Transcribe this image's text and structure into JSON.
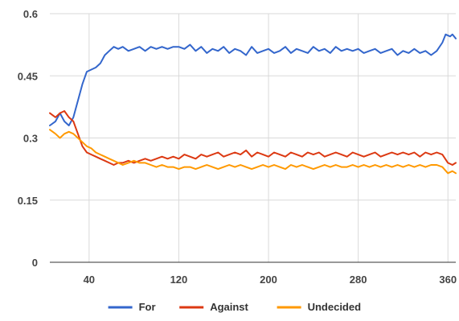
{
  "chart_data": {
    "type": "line",
    "title": "",
    "xlabel": "",
    "ylabel": "",
    "xlim": [
      5,
      367
    ],
    "ylim": [
      0,
      0.6
    ],
    "x_ticks": [
      40,
      120,
      200,
      280,
      360
    ],
    "y_ticks": [
      0,
      0.15,
      0.3,
      0.45,
      0.6
    ],
    "x_tick_labels": [
      "40",
      "120",
      "200",
      "280",
      "360"
    ],
    "y_tick_labels": [
      "0",
      "0.15",
      "0.3",
      "0.45",
      "0.6"
    ],
    "grid": true,
    "legend_position": "bottom",
    "series": [
      {
        "name": "For",
        "color": "#3366cc",
        "points": [
          [
            5,
            0.33
          ],
          [
            10,
            0.34
          ],
          [
            14,
            0.36
          ],
          [
            18,
            0.34
          ],
          [
            22,
            0.33
          ],
          [
            26,
            0.35
          ],
          [
            30,
            0.39
          ],
          [
            34,
            0.43
          ],
          [
            38,
            0.46
          ],
          [
            42,
            0.465
          ],
          [
            46,
            0.47
          ],
          [
            50,
            0.48
          ],
          [
            54,
            0.5
          ],
          [
            58,
            0.51
          ],
          [
            62,
            0.52
          ],
          [
            66,
            0.515
          ],
          [
            70,
            0.52
          ],
          [
            75,
            0.51
          ],
          [
            80,
            0.515
          ],
          [
            85,
            0.52
          ],
          [
            90,
            0.51
          ],
          [
            95,
            0.52
          ],
          [
            100,
            0.515
          ],
          [
            105,
            0.52
          ],
          [
            110,
            0.515
          ],
          [
            115,
            0.52
          ],
          [
            120,
            0.52
          ],
          [
            125,
            0.515
          ],
          [
            130,
            0.525
          ],
          [
            135,
            0.51
          ],
          [
            140,
            0.52
          ],
          [
            145,
            0.505
          ],
          [
            150,
            0.515
          ],
          [
            155,
            0.51
          ],
          [
            160,
            0.52
          ],
          [
            165,
            0.505
          ],
          [
            170,
            0.515
          ],
          [
            175,
            0.51
          ],
          [
            180,
            0.5
          ],
          [
            185,
            0.52
          ],
          [
            190,
            0.505
          ],
          [
            195,
            0.51
          ],
          [
            200,
            0.515
          ],
          [
            205,
            0.505
          ],
          [
            210,
            0.51
          ],
          [
            215,
            0.52
          ],
          [
            220,
            0.505
          ],
          [
            225,
            0.515
          ],
          [
            230,
            0.51
          ],
          [
            235,
            0.505
          ],
          [
            240,
            0.52
          ],
          [
            245,
            0.51
          ],
          [
            250,
            0.515
          ],
          [
            255,
            0.505
          ],
          [
            260,
            0.52
          ],
          [
            265,
            0.51
          ],
          [
            270,
            0.515
          ],
          [
            275,
            0.51
          ],
          [
            280,
            0.515
          ],
          [
            285,
            0.505
          ],
          [
            290,
            0.51
          ],
          [
            295,
            0.515
          ],
          [
            300,
            0.505
          ],
          [
            305,
            0.51
          ],
          [
            310,
            0.515
          ],
          [
            315,
            0.5
          ],
          [
            320,
            0.51
          ],
          [
            325,
            0.505
          ],
          [
            330,
            0.515
          ],
          [
            335,
            0.505
          ],
          [
            340,
            0.51
          ],
          [
            345,
            0.5
          ],
          [
            350,
            0.51
          ],
          [
            355,
            0.53
          ],
          [
            358,
            0.55
          ],
          [
            362,
            0.545
          ],
          [
            364,
            0.55
          ],
          [
            367,
            0.54
          ]
        ]
      },
      {
        "name": "Against",
        "color": "#dc3912",
        "points": [
          [
            5,
            0.36
          ],
          [
            10,
            0.35
          ],
          [
            14,
            0.36
          ],
          [
            18,
            0.365
          ],
          [
            22,
            0.35
          ],
          [
            26,
            0.34
          ],
          [
            30,
            0.31
          ],
          [
            34,
            0.28
          ],
          [
            38,
            0.265
          ],
          [
            42,
            0.26
          ],
          [
            46,
            0.255
          ],
          [
            50,
            0.25
          ],
          [
            54,
            0.245
          ],
          [
            58,
            0.24
          ],
          [
            62,
            0.235
          ],
          [
            66,
            0.24
          ],
          [
            70,
            0.24
          ],
          [
            75,
            0.245
          ],
          [
            80,
            0.24
          ],
          [
            85,
            0.245
          ],
          [
            90,
            0.25
          ],
          [
            95,
            0.245
          ],
          [
            100,
            0.25
          ],
          [
            105,
            0.255
          ],
          [
            110,
            0.25
          ],
          [
            115,
            0.255
          ],
          [
            120,
            0.25
          ],
          [
            125,
            0.26
          ],
          [
            130,
            0.255
          ],
          [
            135,
            0.25
          ],
          [
            140,
            0.26
          ],
          [
            145,
            0.255
          ],
          [
            150,
            0.26
          ],
          [
            155,
            0.265
          ],
          [
            160,
            0.255
          ],
          [
            165,
            0.26
          ],
          [
            170,
            0.265
          ],
          [
            175,
            0.26
          ],
          [
            180,
            0.27
          ],
          [
            185,
            0.255
          ],
          [
            190,
            0.265
          ],
          [
            195,
            0.26
          ],
          [
            200,
            0.255
          ],
          [
            205,
            0.265
          ],
          [
            210,
            0.26
          ],
          [
            215,
            0.255
          ],
          [
            220,
            0.265
          ],
          [
            225,
            0.26
          ],
          [
            230,
            0.255
          ],
          [
            235,
            0.265
          ],
          [
            240,
            0.26
          ],
          [
            245,
            0.265
          ],
          [
            250,
            0.255
          ],
          [
            255,
            0.26
          ],
          [
            260,
            0.265
          ],
          [
            265,
            0.26
          ],
          [
            270,
            0.255
          ],
          [
            275,
            0.265
          ],
          [
            280,
            0.26
          ],
          [
            285,
            0.255
          ],
          [
            290,
            0.26
          ],
          [
            295,
            0.265
          ],
          [
            300,
            0.255
          ],
          [
            305,
            0.26
          ],
          [
            310,
            0.265
          ],
          [
            315,
            0.26
          ],
          [
            320,
            0.265
          ],
          [
            325,
            0.26
          ],
          [
            330,
            0.265
          ],
          [
            335,
            0.255
          ],
          [
            340,
            0.265
          ],
          [
            345,
            0.26
          ],
          [
            350,
            0.265
          ],
          [
            355,
            0.26
          ],
          [
            360,
            0.24
          ],
          [
            364,
            0.235
          ],
          [
            367,
            0.24
          ]
        ]
      },
      {
        "name": "Undecided",
        "color": "#ff9900",
        "points": [
          [
            5,
            0.32
          ],
          [
            10,
            0.31
          ],
          [
            14,
            0.3
          ],
          [
            18,
            0.31
          ],
          [
            22,
            0.315
          ],
          [
            26,
            0.31
          ],
          [
            30,
            0.3
          ],
          [
            34,
            0.29
          ],
          [
            38,
            0.28
          ],
          [
            42,
            0.275
          ],
          [
            46,
            0.265
          ],
          [
            50,
            0.26
          ],
          [
            54,
            0.255
          ],
          [
            58,
            0.25
          ],
          [
            62,
            0.245
          ],
          [
            66,
            0.24
          ],
          [
            70,
            0.235
          ],
          [
            75,
            0.24
          ],
          [
            80,
            0.245
          ],
          [
            85,
            0.24
          ],
          [
            90,
            0.24
          ],
          [
            95,
            0.235
          ],
          [
            100,
            0.23
          ],
          [
            105,
            0.235
          ],
          [
            110,
            0.23
          ],
          [
            115,
            0.23
          ],
          [
            120,
            0.225
          ],
          [
            125,
            0.23
          ],
          [
            130,
            0.23
          ],
          [
            135,
            0.225
          ],
          [
            140,
            0.23
          ],
          [
            145,
            0.235
          ],
          [
            150,
            0.23
          ],
          [
            155,
            0.225
          ],
          [
            160,
            0.23
          ],
          [
            165,
            0.235
          ],
          [
            170,
            0.23
          ],
          [
            175,
            0.235
          ],
          [
            180,
            0.23
          ],
          [
            185,
            0.225
          ],
          [
            190,
            0.23
          ],
          [
            195,
            0.235
          ],
          [
            200,
            0.23
          ],
          [
            205,
            0.235
          ],
          [
            210,
            0.23
          ],
          [
            215,
            0.225
          ],
          [
            220,
            0.235
          ],
          [
            225,
            0.23
          ],
          [
            230,
            0.235
          ],
          [
            235,
            0.23
          ],
          [
            240,
            0.225
          ],
          [
            245,
            0.23
          ],
          [
            250,
            0.235
          ],
          [
            255,
            0.23
          ],
          [
            260,
            0.235
          ],
          [
            265,
            0.23
          ],
          [
            270,
            0.23
          ],
          [
            275,
            0.235
          ],
          [
            280,
            0.23
          ],
          [
            285,
            0.235
          ],
          [
            290,
            0.23
          ],
          [
            295,
            0.235
          ],
          [
            300,
            0.23
          ],
          [
            305,
            0.235
          ],
          [
            310,
            0.23
          ],
          [
            315,
            0.235
          ],
          [
            320,
            0.23
          ],
          [
            325,
            0.235
          ],
          [
            330,
            0.23
          ],
          [
            335,
            0.235
          ],
          [
            340,
            0.23
          ],
          [
            345,
            0.235
          ],
          [
            350,
            0.235
          ],
          [
            355,
            0.23
          ],
          [
            360,
            0.215
          ],
          [
            364,
            0.22
          ],
          [
            367,
            0.215
          ]
        ]
      }
    ]
  }
}
